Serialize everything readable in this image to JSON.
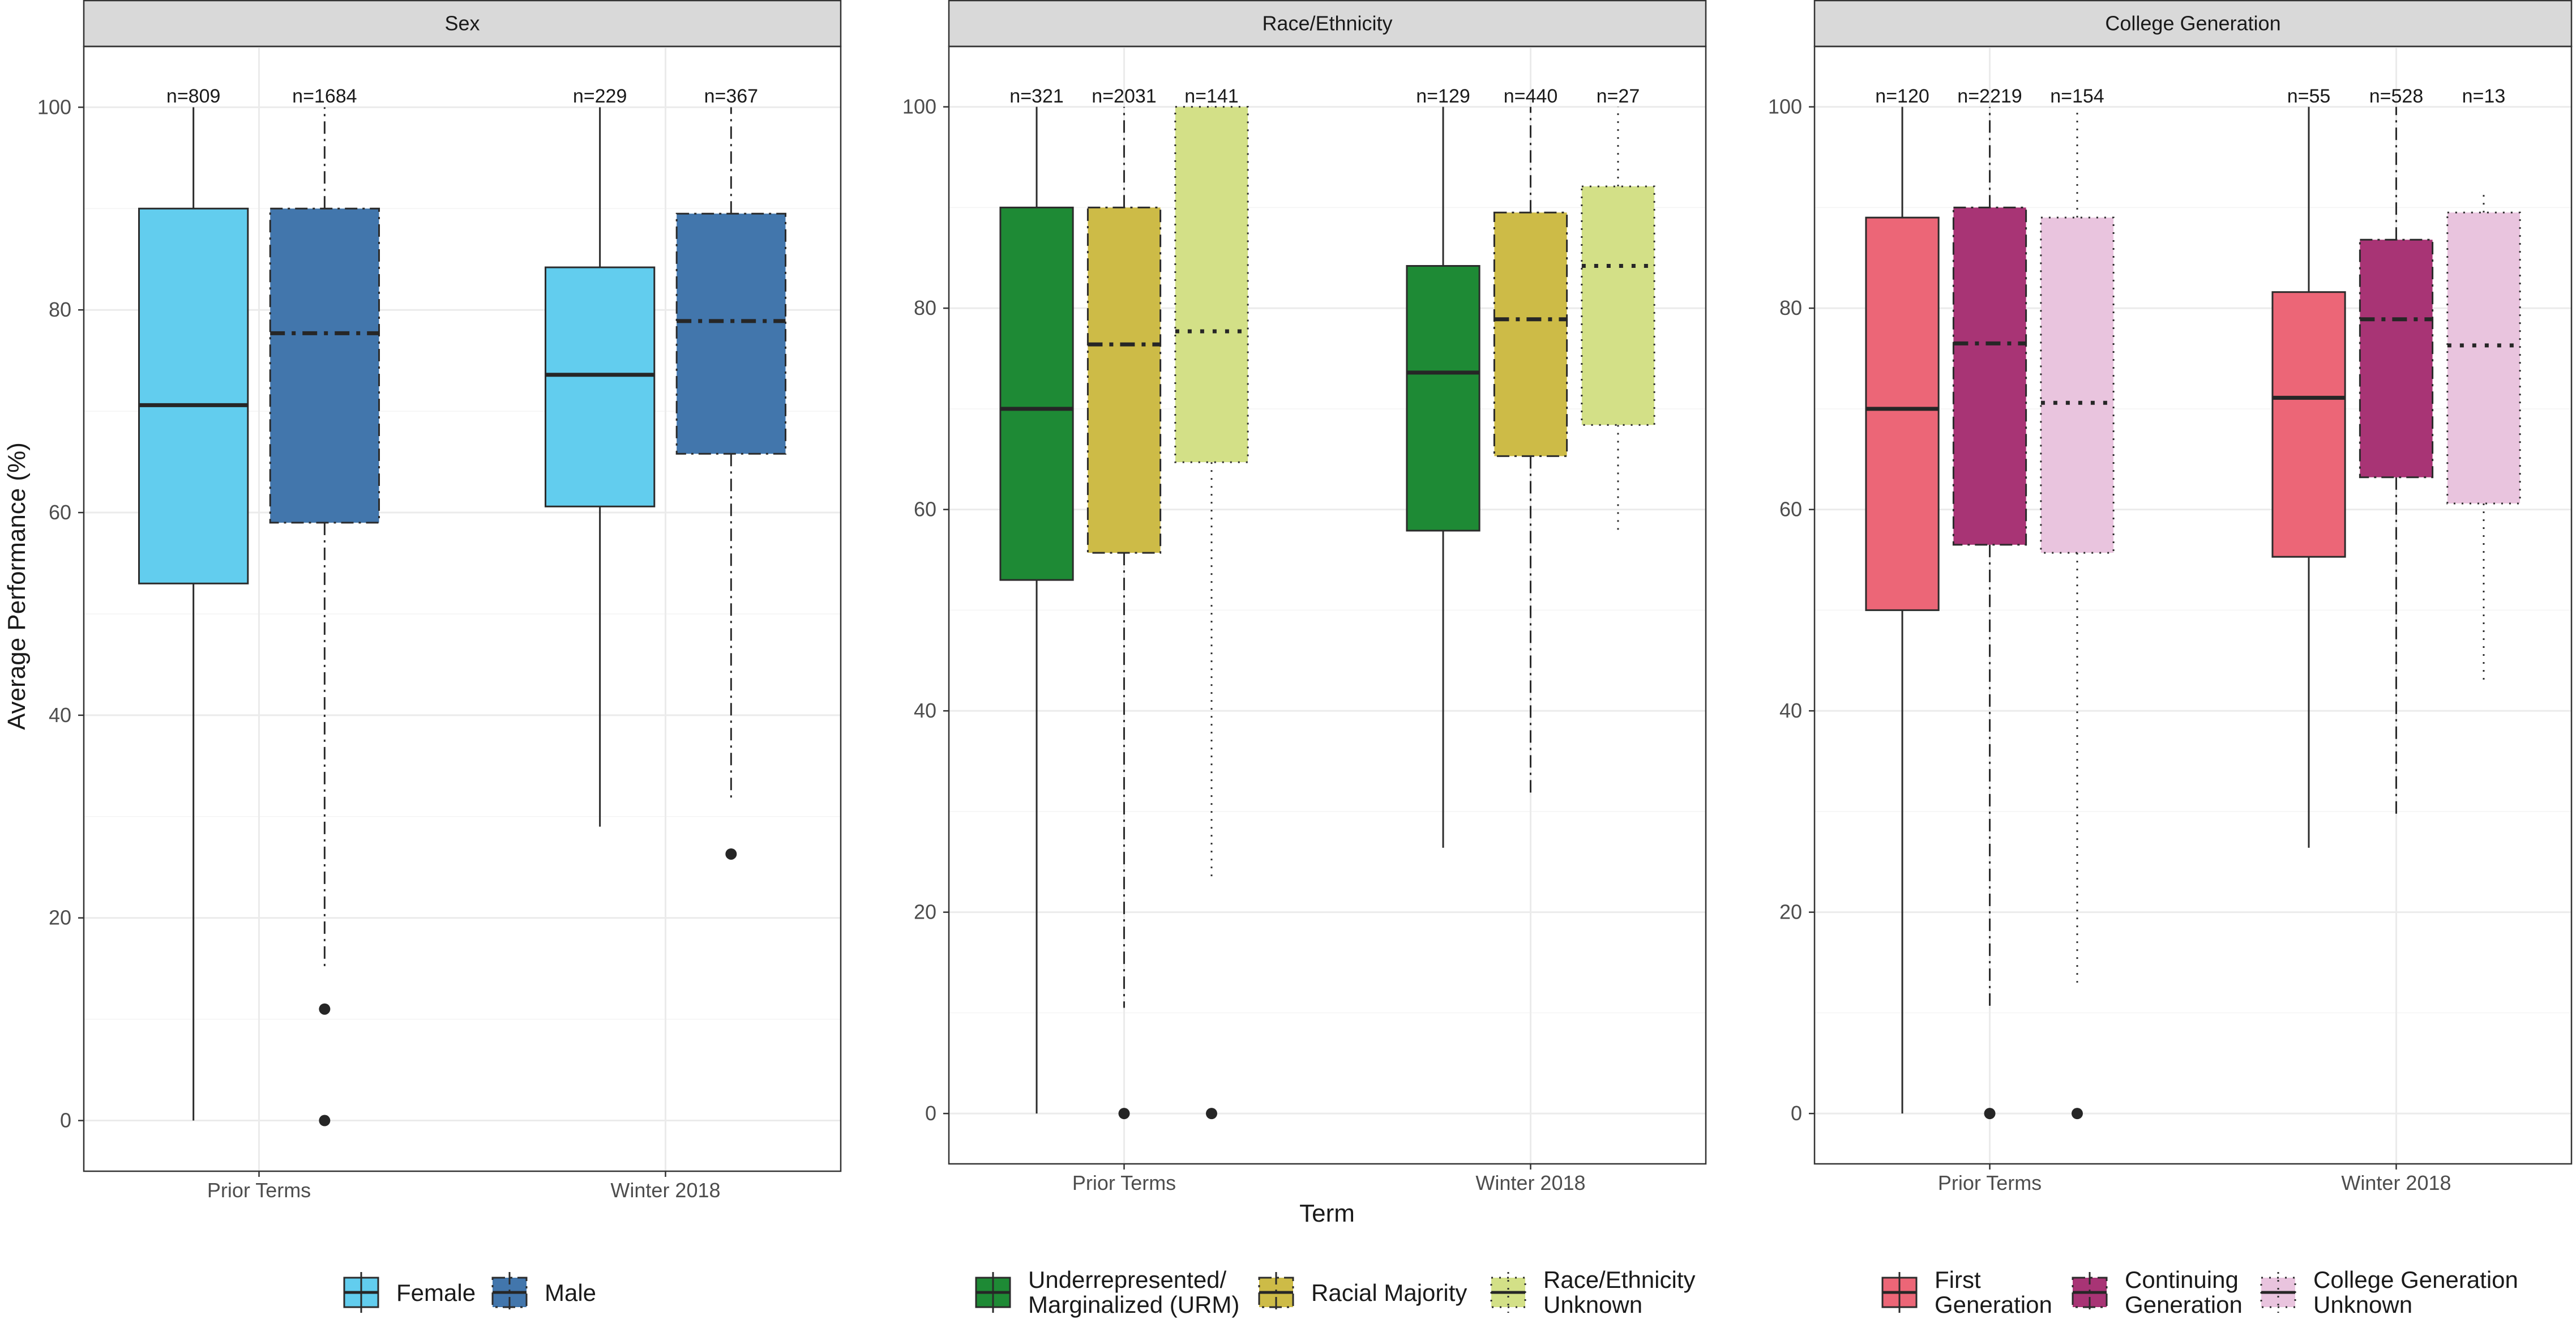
{
  "chart_data": {
    "type": "box",
    "ylabel": "Average Performance (%)",
    "xlabel": "Term",
    "ylim": [
      -5,
      106
    ],
    "yticks": [
      0,
      20,
      40,
      60,
      80,
      100
    ],
    "categories": [
      "Prior Terms",
      "Winter 2018"
    ],
    "grid": true,
    "panels": [
      {
        "title": "Sex",
        "groups": [
          {
            "name": "Female",
            "legend": [
              "Female"
            ],
            "color": "#62CDEE",
            "linestyle": "solid"
          },
          {
            "name": "Male",
            "legend": [
              "Male"
            ],
            "color": "#4276AC",
            "linestyle": "dashdot"
          }
        ],
        "boxes": [
          {
            "term": "Prior Terms",
            "group": "Female",
            "n": "n=809",
            "min": 0,
            "q1": 53,
            "median": 70.6,
            "q3": 90,
            "max": 100,
            "outliers": []
          },
          {
            "term": "Prior Terms",
            "group": "Male",
            "n": "n=1684",
            "min": 15,
            "q1": 59,
            "median": 77.7,
            "q3": 90,
            "max": 100,
            "outliers": [
              11,
              0
            ]
          },
          {
            "term": "Winter 2018",
            "group": "Female",
            "n": "n=229",
            "min": 29,
            "q1": 60.6,
            "median": 73.6,
            "q3": 84.2,
            "max": 100,
            "outliers": []
          },
          {
            "term": "Winter 2018",
            "group": "Male",
            "n": "n=367",
            "min": 31.6,
            "q1": 65.8,
            "median": 78.9,
            "q3": 89.5,
            "max": 100,
            "outliers": [
              26.3
            ]
          }
        ]
      },
      {
        "title": "Race/Ethnicity",
        "groups": [
          {
            "name": "URM",
            "legend": [
              "Underrepresented/",
              "Marginalized (URM)"
            ],
            "color": "#1E8A35",
            "linestyle": "solid"
          },
          {
            "name": "Racial Majority",
            "legend": [
              "Racial Majority"
            ],
            "color": "#CDBB47",
            "linestyle": "dashdot"
          },
          {
            "name": "Race/Ethnicity Unknown",
            "legend": [
              "Race/Ethnicity",
              "Unknown"
            ],
            "color": "#D3E087",
            "linestyle": "dotted"
          }
        ],
        "boxes": [
          {
            "term": "Prior Terms",
            "group": "URM",
            "n": "n=321",
            "min": 0,
            "q1": 53,
            "median": 70,
            "q3": 90,
            "max": 100,
            "outliers": []
          },
          {
            "term": "Prior Terms",
            "group": "Racial Majority",
            "n": "n=2031",
            "min": 10.5,
            "q1": 55.7,
            "median": 76.4,
            "q3": 90,
            "max": 100,
            "outliers": [
              0
            ]
          },
          {
            "term": "Prior Terms",
            "group": "Race/Ethnicity Unknown",
            "n": "n=141",
            "min": 23,
            "q1": 64.7,
            "median": 77.7,
            "q3": 100,
            "max": 100,
            "outliers": [
              0
            ]
          },
          {
            "term": "Winter 2018",
            "group": "URM",
            "n": "n=129",
            "min": 26.4,
            "q1": 57.9,
            "median": 73.6,
            "q3": 84.2,
            "max": 100,
            "outliers": []
          },
          {
            "term": "Winter 2018",
            "group": "Racial Majority",
            "n": "n=440",
            "min": 31.6,
            "q1": 65.3,
            "median": 78.9,
            "q3": 89.5,
            "max": 100,
            "outliers": []
          },
          {
            "term": "Winter 2018",
            "group": "Race/Ethnicity Unknown",
            "n": "n=27",
            "min": 57.9,
            "q1": 68.4,
            "median": 84.2,
            "q3": 92.1,
            "max": 100,
            "outliers": []
          }
        ]
      },
      {
        "title": "College Generation",
        "groups": [
          {
            "name": "First Generation",
            "legend": [
              "First",
              "Generation"
            ],
            "color": "#EC6677",
            "linestyle": "solid"
          },
          {
            "name": "Continuing Generation",
            "legend": [
              "Continuing",
              "Generation"
            ],
            "color": "#A83475",
            "linestyle": "dashdot"
          },
          {
            "name": "College Generation Unknown",
            "legend": [
              "College Generation",
              "Unknown"
            ],
            "color": "#E9C4DE",
            "linestyle": "dotted"
          }
        ],
        "boxes": [
          {
            "term": "Prior Terms",
            "group": "First Generation",
            "n": "n=120",
            "min": 0,
            "q1": 50,
            "median": 70,
            "q3": 89,
            "max": 100,
            "outliers": []
          },
          {
            "term": "Prior Terms",
            "group": "Continuing Generation",
            "n": "n=2219",
            "min": 10.5,
            "q1": 56.5,
            "median": 76.5,
            "q3": 90,
            "max": 100,
            "outliers": [
              0
            ]
          },
          {
            "term": "Prior Terms",
            "group": "College Generation Unknown",
            "n": "n=154",
            "min": 13,
            "q1": 55.7,
            "median": 70.6,
            "q3": 89,
            "max": 100,
            "outliers": [
              0
            ]
          },
          {
            "term": "Winter 2018",
            "group": "First Generation",
            "n": "n=55",
            "min": 26.4,
            "q1": 55.3,
            "median": 71.1,
            "q3": 81.6,
            "max": 100,
            "outliers": []
          },
          {
            "term": "Winter 2018",
            "group": "Continuing Generation",
            "n": "n=528",
            "min": 29.4,
            "q1": 63.2,
            "median": 78.9,
            "q3": 86.8,
            "max": 100,
            "outliers": []
          },
          {
            "term": "Winter 2018",
            "group": "College Generation Unknown",
            "n": "n=13",
            "min": 42.8,
            "q1": 60.6,
            "median": 76.3,
            "q3": 89.5,
            "max": 91.7,
            "outliers": []
          }
        ]
      }
    ]
  }
}
